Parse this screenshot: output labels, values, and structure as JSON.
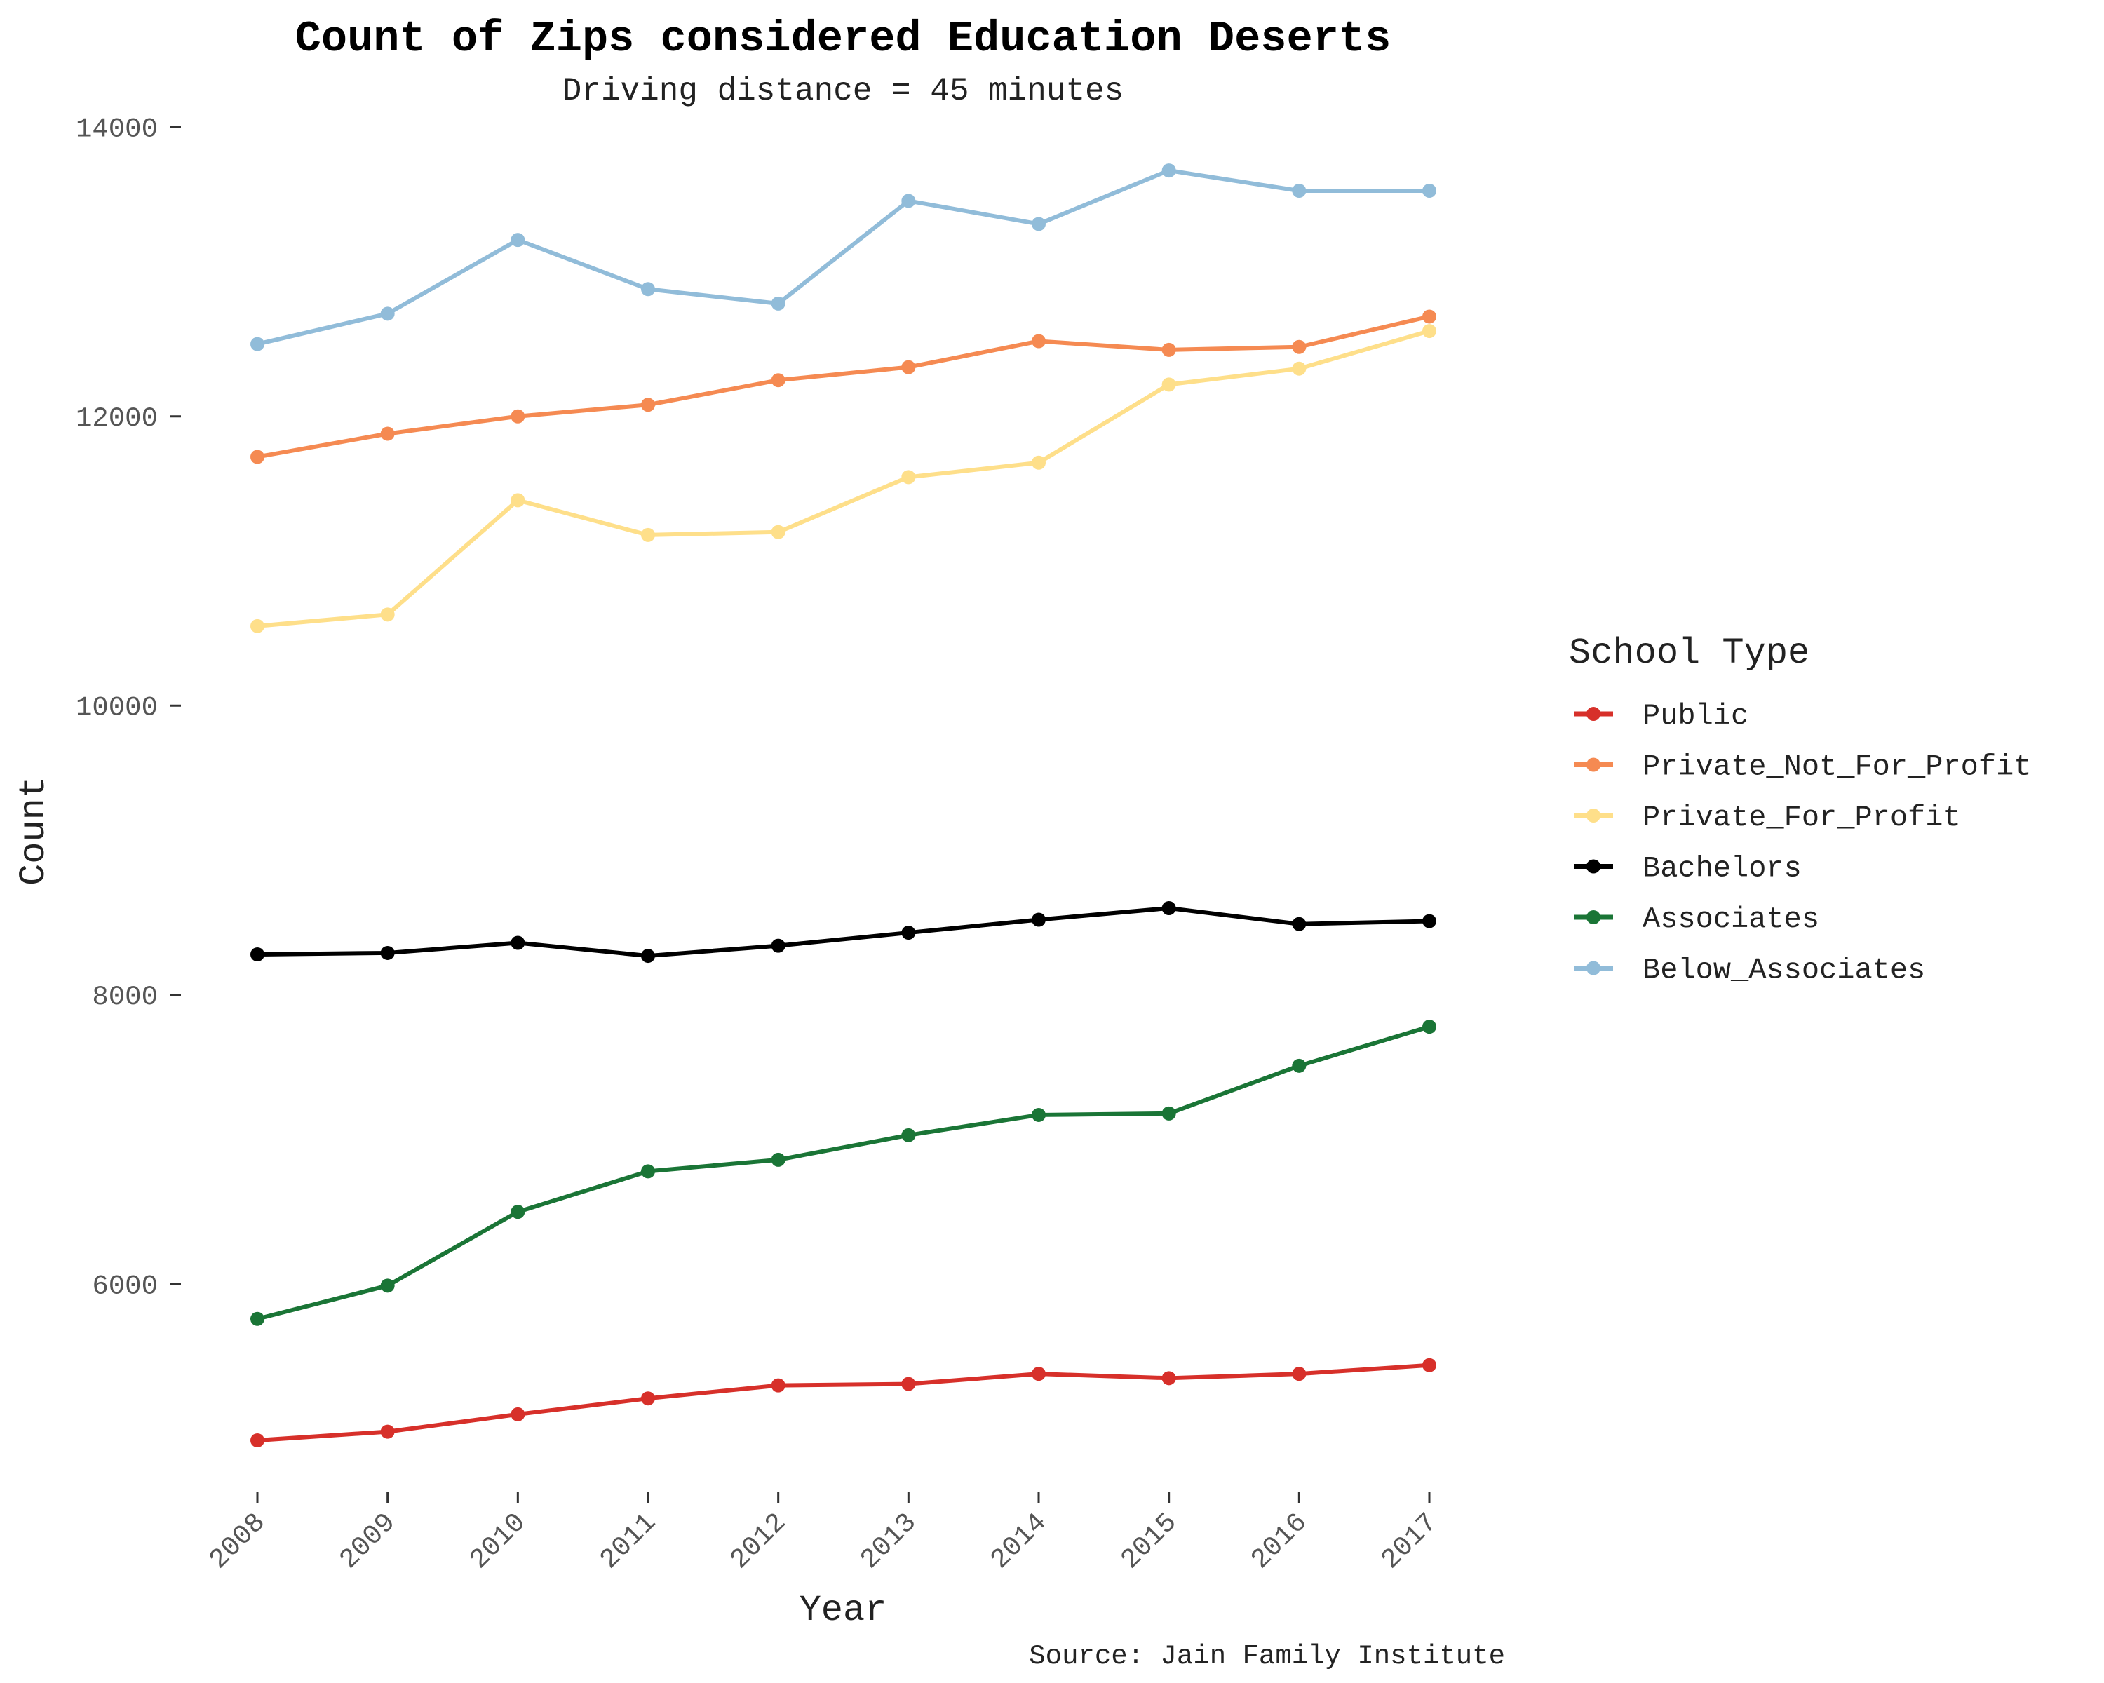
{
  "chart_data": {
    "type": "line",
    "title": "Count of Zips considered Education Deserts",
    "subtitle": "Driving distance = 45 minutes",
    "xlabel": "Year",
    "ylabel": "Count",
    "caption": "Source: Jain Family Institute",
    "x": [
      "2008",
      "2009",
      "2010",
      "2011",
      "2012",
      "2013",
      "2014",
      "2015",
      "2016",
      "2017"
    ],
    "y_ticks": [
      "6000",
      "8000",
      "10000",
      "12000",
      "14000"
    ],
    "ylim": [
      4600,
      14200
    ],
    "grid": false,
    "legend": {
      "title": "School Type",
      "position": "right"
    },
    "series": [
      {
        "name": "Public",
        "color": "#d7302a",
        "values": [
          4920,
          4980,
          5100,
          5210,
          5300,
          5310,
          5380,
          5350,
          5380,
          5440
        ]
      },
      {
        "name": "Private_Not_For_Profit",
        "color": "#f58a52",
        "values": [
          11720,
          11880,
          12000,
          12080,
          12250,
          12340,
          12520,
          12460,
          12480,
          12690
        ]
      },
      {
        "name": "Private_For_Profit",
        "color": "#fedf8a",
        "values": [
          10550,
          10630,
          11420,
          11180,
          11200,
          11580,
          11680,
          12220,
          12330,
          12590
        ]
      },
      {
        "name": "Bachelors",
        "color": "#000000",
        "values": [
          8280,
          8290,
          8360,
          8270,
          8340,
          8430,
          8520,
          8600,
          8490,
          8510
        ]
      },
      {
        "name": "Associates",
        "color": "#1a7536",
        "values": [
          5760,
          5990,
          6500,
          6780,
          6860,
          7030,
          7170,
          7180,
          7510,
          7780
        ]
      },
      {
        "name": "Below_Associates",
        "color": "#91bcd9",
        "values": [
          12500,
          12710,
          13220,
          12880,
          12780,
          13490,
          13330,
          13700,
          13560,
          13560
        ]
      }
    ]
  }
}
